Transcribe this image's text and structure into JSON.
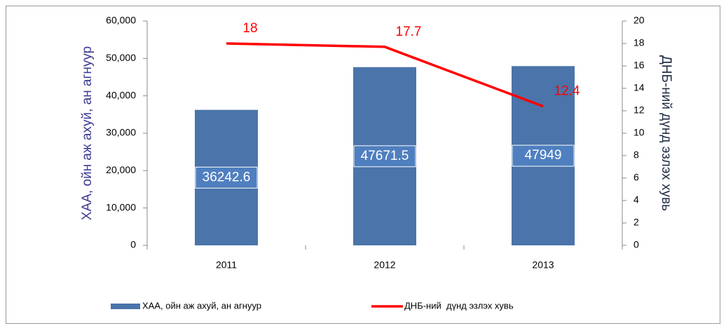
{
  "chart_data": {
    "type": "bar_line",
    "categories": [
      "2011",
      "2012",
      "2013"
    ],
    "series": [
      {
        "name": "ХАА, ойн аж ахуй, ан агнуур",
        "type": "bar",
        "color": "#4a74aa",
        "values": [
          36242.6,
          47671.5,
          47949
        ]
      },
      {
        "name": "ДНБ-ний  дүнд эзлэх хувь",
        "type": "line",
        "axis": "y2",
        "color": "#ff0000",
        "values": [
          18,
          17.7,
          12.4
        ]
      }
    ],
    "ylabel": "ХАА, ойн аж ахуй, ан агнуур",
    "y2label": "ДНБ-ний дүнд эзлэх хувь",
    "ylim": [
      0,
      60000
    ],
    "yticks": [
      0,
      {
        "value": 10000,
        "label": "10,000"
      },
      {
        "value": 20000,
        "label": "20,000"
      },
      {
        "value": 30000,
        "label": "30,000"
      },
      {
        "value": 40000,
        "label": "40,000"
      },
      {
        "value": 50000,
        "label": "50,000"
      },
      {
        "value": 60000,
        "label": "60,000"
      }
    ],
    "y2lim": [
      0,
      20
    ],
    "y2ticks": [
      0,
      2,
      4,
      6,
      8,
      10,
      12,
      14,
      16,
      18,
      20
    ],
    "legend": "bottom"
  }
}
